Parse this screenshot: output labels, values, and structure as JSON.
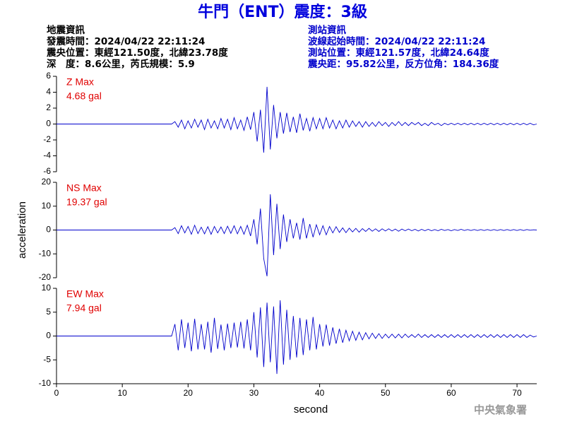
{
  "header": {
    "title": "牛門（ENT）震度：3級",
    "left": [
      "地震資訊",
      "發震時間：2024/04/22 22:11:24",
      "震央位置：東經121.50度，北緯23.78度",
      "深　度：8.6公里，芮氏規模：5.9"
    ],
    "right": [
      "測站資訊",
      "波線起始時間：2024/04/22 22:11:24",
      "測站位置：東經121.57度，北緯24.64度",
      "震央距：95.82公里，反方位角：184.36度"
    ]
  },
  "footer": "中央氣象署",
  "chart_data": [
    {
      "type": "line",
      "color": "#0000cc",
      "annotations": [
        "Z Max",
        "4.68 gal"
      ],
      "xlim": [
        0,
        73
      ],
      "ylim": [
        -6,
        6
      ],
      "yticks": [
        -6,
        -4,
        -2,
        0,
        2,
        4,
        6
      ],
      "x": [
        0,
        17.5,
        18,
        18.5,
        19,
        19.5,
        20,
        20.5,
        21,
        21.5,
        22,
        22.5,
        23,
        23.5,
        24,
        24.5,
        25,
        25.5,
        26,
        26.5,
        27,
        27.5,
        28,
        28.5,
        29,
        29.5,
        30,
        30.5,
        31,
        31.5,
        32,
        32.5,
        33,
        33.5,
        34,
        34.5,
        35,
        35.5,
        36,
        36.5,
        37,
        37.5,
        38,
        38.5,
        39,
        39.5,
        40,
        40.5,
        41,
        41.5,
        42,
        42.5,
        43,
        43.5,
        44,
        44.5,
        45,
        45.5,
        46,
        46.5,
        47,
        47.5,
        48,
        48.5,
        49,
        49.5,
        50,
        50.5,
        51,
        51.5,
        52,
        52.5,
        53,
        53.5,
        54,
        54.5,
        55,
        55.5,
        56,
        56.5,
        57,
        57.5,
        58,
        58.5,
        59,
        59.5,
        60,
        60.5,
        61,
        61.5,
        62,
        62.5,
        63,
        63.5,
        64,
        64.5,
        65,
        65.5,
        66,
        66.5,
        67,
        67.5,
        68,
        68.5,
        69,
        69.5,
        70,
        70.5,
        71,
        71.5,
        72,
        72.5,
        73
      ],
      "values": [
        0,
        0,
        0.3,
        -0.4,
        0.5,
        -0.6,
        0.4,
        -0.5,
        0.6,
        -0.4,
        0.5,
        -0.7,
        0.6,
        -0.5,
        0.4,
        -0.6,
        0.7,
        -0.5,
        0.6,
        -0.7,
        0.8,
        -0.6,
        0.5,
        -0.8,
        0.9,
        -0.7,
        1.5,
        -2.2,
        1.8,
        -3.6,
        4.68,
        -3.2,
        2.4,
        -1.8,
        1.5,
        -1.2,
        1.4,
        -1.0,
        0.9,
        -1.1,
        1.3,
        -0.8,
        0.7,
        -0.9,
        0.8,
        -0.6,
        0.7,
        -0.6,
        0.8,
        -0.5,
        0.5,
        -0.6,
        0.4,
        -0.5,
        0.5,
        -0.4,
        0.4,
        -0.3,
        0.3,
        -0.4,
        0.3,
        -0.3,
        0.2,
        -0.3,
        0.3,
        -0.2,
        0.2,
        -0.3,
        0.2,
        -0.2,
        0.3,
        -0.2,
        0.2,
        -0.2,
        0.2,
        -0.1,
        0.2,
        -0.2,
        0.1,
        -0.2,
        0.2,
        -0.1,
        0.1,
        -0.2,
        0.1,
        -0.1,
        0.1,
        -0.1,
        0.1,
        -0.1,
        0.1,
        -0.1,
        0.1,
        -0.1,
        0.1,
        -0.1,
        0.1,
        -0.1,
        0.1,
        -0.1,
        0.1,
        -0.1,
        0.1,
        -0.1,
        0.1,
        -0.1,
        0.1,
        -0.1,
        0.1,
        -0.1,
        0.1,
        -0.1,
        0
      ]
    },
    {
      "type": "line",
      "color": "#0000cc",
      "annotations": [
        "NS Max",
        "19.37 gal"
      ],
      "y_label": "acceleration",
      "xlim": [
        0,
        73
      ],
      "ylim": [
        -20,
        20
      ],
      "yticks": [
        -20,
        -10,
        0,
        10,
        20
      ],
      "x": [
        0,
        17.5,
        18,
        18.5,
        19,
        19.5,
        20,
        20.5,
        21,
        21.5,
        22,
        22.5,
        23,
        23.5,
        24,
        24.5,
        25,
        25.5,
        26,
        26.5,
        27,
        27.5,
        28,
        28.5,
        29,
        29.5,
        30,
        30.5,
        31,
        31.5,
        32,
        32.5,
        33,
        33.5,
        34,
        34.5,
        35,
        35.5,
        36,
        36.5,
        37,
        37.5,
        38,
        38.5,
        39,
        39.5,
        40,
        40.5,
        41,
        41.5,
        42,
        42.5,
        43,
        43.5,
        44,
        44.5,
        45,
        45.5,
        46,
        46.5,
        47,
        47.5,
        48,
        48.5,
        49,
        49.5,
        50,
        50.5,
        51,
        51.5,
        52,
        52.5,
        53,
        53.5,
        54,
        54.5,
        55,
        55.5,
        56,
        56.5,
        57,
        57.5,
        58,
        58.5,
        59,
        59.5,
        60,
        60.5,
        61,
        61.5,
        62,
        62.5,
        63,
        63.5,
        64,
        64.5,
        65,
        65.5,
        66,
        66.5,
        67,
        67.5,
        68,
        68.5,
        69,
        69.5,
        70,
        70.5,
        71,
        71.5,
        72,
        72.5,
        73
      ],
      "values": [
        0,
        0,
        1.0,
        -1.5,
        1.8,
        -1.2,
        1.5,
        -1.8,
        2.0,
        -1.5,
        1.2,
        -1.6,
        1.4,
        -1.8,
        1.5,
        -1.2,
        1.3,
        -1.5,
        1.6,
        -1.4,
        1.8,
        -1.6,
        1.5,
        -1.8,
        2.0,
        -2.5,
        4.5,
        -6.0,
        9.0,
        -12.0,
        -19.37,
        15.0,
        -10.5,
        11.0,
        -8.0,
        6.5,
        -5.0,
        4.5,
        -3.5,
        3.0,
        -4.0,
        5.0,
        -3.5,
        2.5,
        -3.0,
        2.2,
        -2.0,
        1.8,
        -2.0,
        1.5,
        -1.2,
        1.4,
        -1.0,
        0.9,
        -1.1,
        0.8,
        -0.8,
        0.7,
        -0.9,
        0.6,
        -0.6,
        0.7,
        -0.5,
        0.5,
        -0.6,
        0.5,
        -0.4,
        0.5,
        -0.4,
        0.4,
        -0.5,
        0.4,
        -0.3,
        0.4,
        -0.3,
        0.3,
        -0.4,
        0.3,
        -0.3,
        0.3,
        -0.3,
        0.2,
        -0.3,
        0.3,
        -0.2,
        0.2,
        -0.3,
        0.2,
        -0.2,
        0.3,
        -0.2,
        0.2,
        -0.2,
        0.2,
        -0.2,
        0.2,
        -0.2,
        0.2,
        -0.2,
        0.2,
        -0.2,
        0.2,
        -0.2,
        0.2,
        -0.2,
        0.2,
        -0.2,
        0.2,
        -0.2,
        0.2,
        -0.1,
        0.1,
        0
      ]
    },
    {
      "type": "line",
      "color": "#0000cc",
      "annotations": [
        "EW Max",
        "7.94 gal"
      ],
      "x_label": "second",
      "xlim": [
        0,
        73
      ],
      "xticks": [
        0,
        10,
        20,
        30,
        40,
        50,
        60,
        70
      ],
      "ylim": [
        -10,
        10
      ],
      "yticks": [
        -10,
        -5,
        0,
        5,
        10
      ],
      "x": [
        0,
        17.5,
        18,
        18.5,
        19,
        19.5,
        20,
        20.5,
        21,
        21.5,
        22,
        22.5,
        23,
        23.5,
        24,
        24.5,
        25,
        25.5,
        26,
        26.5,
        27,
        27.5,
        28,
        28.5,
        29,
        29.5,
        30,
        30.5,
        31,
        31.5,
        32,
        32.5,
        33,
        33.5,
        34,
        34.5,
        35,
        35.5,
        36,
        36.5,
        37,
        37.5,
        38,
        38.5,
        39,
        39.5,
        40,
        40.5,
        41,
        41.5,
        42,
        42.5,
        43,
        43.5,
        44,
        44.5,
        45,
        45.5,
        46,
        46.5,
        47,
        47.5,
        48,
        48.5,
        49,
        49.5,
        50,
        50.5,
        51,
        51.5,
        52,
        52.5,
        53,
        53.5,
        54,
        54.5,
        55,
        55.5,
        56,
        56.5,
        57,
        57.5,
        58,
        58.5,
        59,
        59.5,
        60,
        60.5,
        61,
        61.5,
        62,
        62.5,
        63,
        63.5,
        64,
        64.5,
        65,
        65.5,
        66,
        66.5,
        67,
        67.5,
        68,
        68.5,
        69,
        69.5,
        70,
        70.5,
        71,
        71.5,
        72,
        72.5,
        73
      ],
      "values": [
        0,
        0,
        2.5,
        -3.0,
        3.5,
        -2.5,
        2.8,
        -3.2,
        3.6,
        -2.8,
        2.5,
        -2.8,
        3.0,
        -3.5,
        3.8,
        -2.7,
        2.4,
        -3.0,
        2.6,
        -2.5,
        2.8,
        -2.4,
        3.0,
        -2.6,
        3.5,
        -3.0,
        5.0,
        -4.5,
        6.0,
        -6.5,
        7.0,
        -5.5,
        6.2,
        -7.94,
        7.5,
        -6.0,
        5.5,
        -5.0,
        4.2,
        -4.5,
        3.8,
        -4.0,
        3.5,
        -3.0,
        4.0,
        -2.8,
        2.5,
        -2.2,
        2.4,
        -2.0,
        1.8,
        -1.6,
        1.5,
        -1.4,
        1.2,
        -1.0,
        1.0,
        -0.9,
        0.8,
        -0.8,
        0.7,
        -0.6,
        0.6,
        -0.5,
        0.5,
        -0.5,
        0.4,
        -0.4,
        0.4,
        -0.4,
        0.4,
        -0.4,
        0.4,
        -0.3,
        0.3,
        -0.3,
        0.4,
        -0.3,
        0.3,
        -0.3,
        0.3,
        -0.3,
        0.3,
        -0.3,
        0.3,
        -0.3,
        0.3,
        -0.3,
        0.3,
        -0.3,
        0.3,
        -0.3,
        0.3,
        -0.3,
        0.3,
        -0.3,
        0.3,
        -0.3,
        0.3,
        -0.3,
        0.3,
        -0.3,
        0.3,
        -0.3,
        0.3,
        -0.3,
        0.3,
        -0.3,
        0.3,
        -0.3,
        0.2,
        -0.2,
        0
      ]
    }
  ]
}
